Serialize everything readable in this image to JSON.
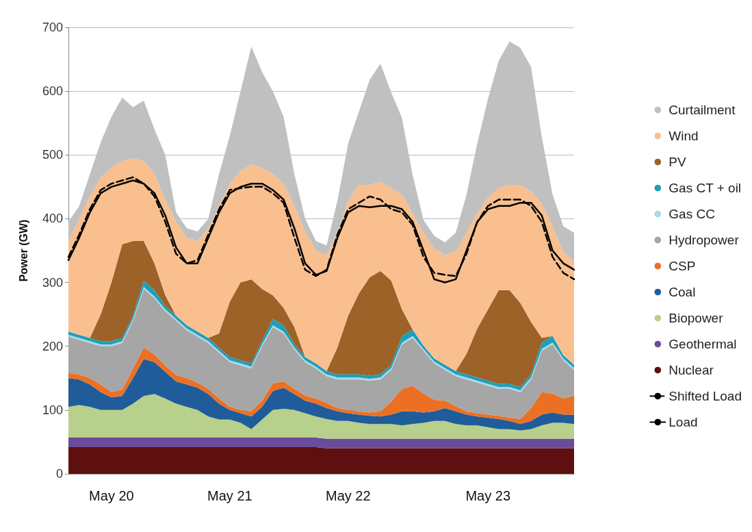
{
  "chart_data": {
    "type": "area",
    "stacked": true,
    "ylabel": "Power (GW)",
    "ylim": [
      0,
      700
    ],
    "yticks": [
      0,
      100,
      200,
      300,
      400,
      500,
      600,
      700
    ],
    "grid": "y",
    "legend": "right",
    "marker": "none",
    "categories": [
      null,
      null,
      null,
      null,
      "May 20",
      null,
      null,
      null,
      null,
      null,
      null,
      null,
      null,
      null,
      null,
      "May 21",
      null,
      null,
      null,
      null,
      null,
      null,
      null,
      null,
      null,
      null,
      "May 22",
      null,
      null,
      null,
      null,
      null,
      null,
      null,
      null,
      null,
      null,
      null,
      null,
      "May 23",
      null,
      null,
      null,
      null,
      null,
      null,
      null,
      null
    ],
    "series": [
      {
        "name": "Nuclear",
        "color": "#5e1010",
        "values": [
          42,
          42,
          42,
          42,
          42,
          42,
          42,
          42,
          42,
          42,
          42,
          42,
          42,
          42,
          42,
          42,
          42,
          42,
          42,
          42,
          42,
          42,
          42,
          42,
          40,
          40,
          40,
          40,
          40,
          40,
          40,
          40,
          40,
          40,
          40,
          40,
          40,
          40,
          40,
          40,
          40,
          40,
          40,
          40,
          40,
          40,
          40,
          40
        ]
      },
      {
        "name": "Geothermal",
        "color": "#6b4c9a",
        "values": [
          15,
          15,
          15,
          15,
          15,
          15,
          15,
          15,
          15,
          15,
          15,
          15,
          15,
          15,
          15,
          15,
          15,
          15,
          15,
          15,
          15,
          15,
          15,
          15,
          15,
          15,
          15,
          15,
          15,
          15,
          15,
          15,
          15,
          15,
          15,
          15,
          15,
          15,
          15,
          15,
          15,
          15,
          15,
          15,
          15,
          15,
          15,
          15
        ]
      },
      {
        "name": "Biopower",
        "color": "#b7d08c",
        "values": [
          48,
          51,
          48,
          43,
          43,
          43,
          53,
          65,
          68,
          61,
          53,
          48,
          43,
          33,
          28,
          28,
          23,
          13,
          28,
          43,
          45,
          43,
          38,
          33,
          31,
          28,
          28,
          25,
          23,
          23,
          23,
          21,
          23,
          25,
          28,
          28,
          23,
          21,
          21,
          18,
          15,
          15,
          13,
          15,
          21,
          25,
          25,
          23
        ]
      },
      {
        "name": "Coal",
        "color": "#1f5c99",
        "values": [
          45,
          40,
          35,
          28,
          20,
          22,
          40,
          58,
          50,
          42,
          35,
          35,
          35,
          35,
          25,
          15,
          15,
          20,
          20,
          30,
          33,
          25,
          20,
          20,
          17,
          15,
          12,
          13,
          13,
          12,
          15,
          22,
          20,
          16,
          15,
          20,
          20,
          17,
          14,
          15,
          16,
          13,
          10,
          13,
          17,
          16,
          13,
          15
        ]
      },
      {
        "name": "CSP",
        "color": "#ec7024",
        "values": [
          8,
          8,
          10,
          12,
          8,
          10,
          15,
          18,
          12,
          10,
          10,
          10,
          8,
          8,
          8,
          5,
          5,
          8,
          10,
          12,
          10,
          8,
          8,
          8,
          8,
          5,
          5,
          5,
          5,
          8,
          20,
          35,
          40,
          30,
          18,
          12,
          8,
          5,
          5,
          5,
          5,
          5,
          8,
          20,
          35,
          30,
          25,
          30
        ]
      },
      {
        "name": "Hydropower",
        "color": "#a6a6a6",
        "values": [
          57,
          54,
          55,
          60,
          72,
          73,
          75,
          92,
          88,
          85,
          85,
          75,
          72,
          72,
          72,
          70,
          70,
          67,
          85,
          88,
          75,
          62,
          52,
          47,
          42,
          45,
          48,
          50,
          50,
          50,
          50,
          70,
          75,
          67,
          57,
          48,
          47,
          50,
          48,
          45,
          42,
          45,
          42,
          45,
          65,
          77,
          60,
          40
        ]
      },
      {
        "name": "Gas CC",
        "color": "#a8d8ea",
        "values": [
          3,
          3,
          3,
          3,
          3,
          3,
          3,
          3,
          3,
          3,
          3,
          3,
          3,
          3,
          3,
          3,
          3,
          3,
          3,
          3,
          3,
          3,
          3,
          3,
          3,
          3,
          3,
          3,
          3,
          3,
          3,
          3,
          3,
          3,
          3,
          3,
          3,
          3,
          3,
          3,
          3,
          3,
          3,
          3,
          3,
          3,
          3,
          3
        ]
      },
      {
        "name": "Gas CT + oil",
        "color": "#1e9fb9",
        "values": [
          5,
          5,
          5,
          5,
          5,
          5,
          5,
          10,
          10,
          5,
          5,
          5,
          5,
          5,
          5,
          5,
          5,
          5,
          5,
          10,
          10,
          5,
          5,
          5,
          5,
          5,
          5,
          5,
          5,
          5,
          5,
          10,
          10,
          5,
          5,
          5,
          5,
          5,
          5,
          5,
          5,
          5,
          5,
          5,
          10,
          10,
          5,
          5
        ]
      },
      {
        "name": "PV",
        "color": "#9c6227",
        "values": [
          0,
          0,
          0,
          42,
          92,
          147,
          117,
          62,
          42,
          17,
          0,
          0,
          0,
          0,
          22,
          87,
          122,
          132,
          82,
          37,
          27,
          27,
          0,
          0,
          0,
          42,
          92,
          127,
          154,
          162,
          132,
          42,
          0,
          0,
          0,
          0,
          0,
          32,
          77,
          112,
          147,
          147,
          132,
          82,
          7,
          0,
          0,
          0
        ]
      },
      {
        "name": "Wind",
        "color": "#f9bf8f",
        "values": [
          142,
          182,
          222,
          215,
          180,
          130,
          130,
          125,
          140,
          150,
          147,
          137,
          142,
          172,
          200,
          185,
          175,
          180,
          190,
          190,
          195,
          190,
          197,
          177,
          182,
          180,
          180,
          170,
          145,
          140,
          145,
          180,
          182,
          177,
          172,
          172,
          187,
          190,
          180,
          175,
          160,
          165,
          185,
          205,
          210,
          172,
          162,
          162
        ]
      },
      {
        "name": "Curtailment",
        "color": "#c0c0c0",
        "values": [
          30,
          20,
          35,
          55,
          80,
          100,
          80,
          95,
          70,
          70,
          15,
          15,
          15,
          15,
          50,
          75,
          125,
          185,
          150,
          130,
          105,
          50,
          20,
          15,
          15,
          50,
          90,
          115,
          165,
          185,
          150,
          120,
          60,
          20,
          20,
          20,
          30,
          60,
          110,
          155,
          200,
          225,
          215,
          195,
          105,
          50,
          40,
          45
        ]
      },
      {
        "name": "Shifted Load",
        "color": "#000000",
        "type": "line",
        "line_style": "dashed",
        "values": [
          340,
          375,
          415,
          445,
          455,
          460,
          465,
          455,
          435,
          395,
          345,
          330,
          335,
          375,
          415,
          445,
          448,
          450,
          450,
          440,
          425,
          370,
          320,
          310,
          320,
          375,
          415,
          425,
          435,
          430,
          415,
          410,
          390,
          340,
          315,
          312,
          310,
          345,
          395,
          420,
          430,
          430,
          430,
          420,
          395,
          340,
          315,
          305
        ]
      },
      {
        "name": "Load",
        "color": "#000000",
        "type": "line",
        "line_style": "solid",
        "values": [
          335,
          370,
          410,
          440,
          450,
          455,
          460,
          455,
          440,
          405,
          355,
          330,
          330,
          370,
          410,
          440,
          450,
          455,
          455,
          445,
          430,
          385,
          330,
          312,
          318,
          370,
          410,
          420,
          418,
          420,
          420,
          415,
          395,
          350,
          305,
          300,
          305,
          350,
          395,
          415,
          420,
          420,
          425,
          425,
          405,
          350,
          330,
          320
        ]
      }
    ]
  }
}
